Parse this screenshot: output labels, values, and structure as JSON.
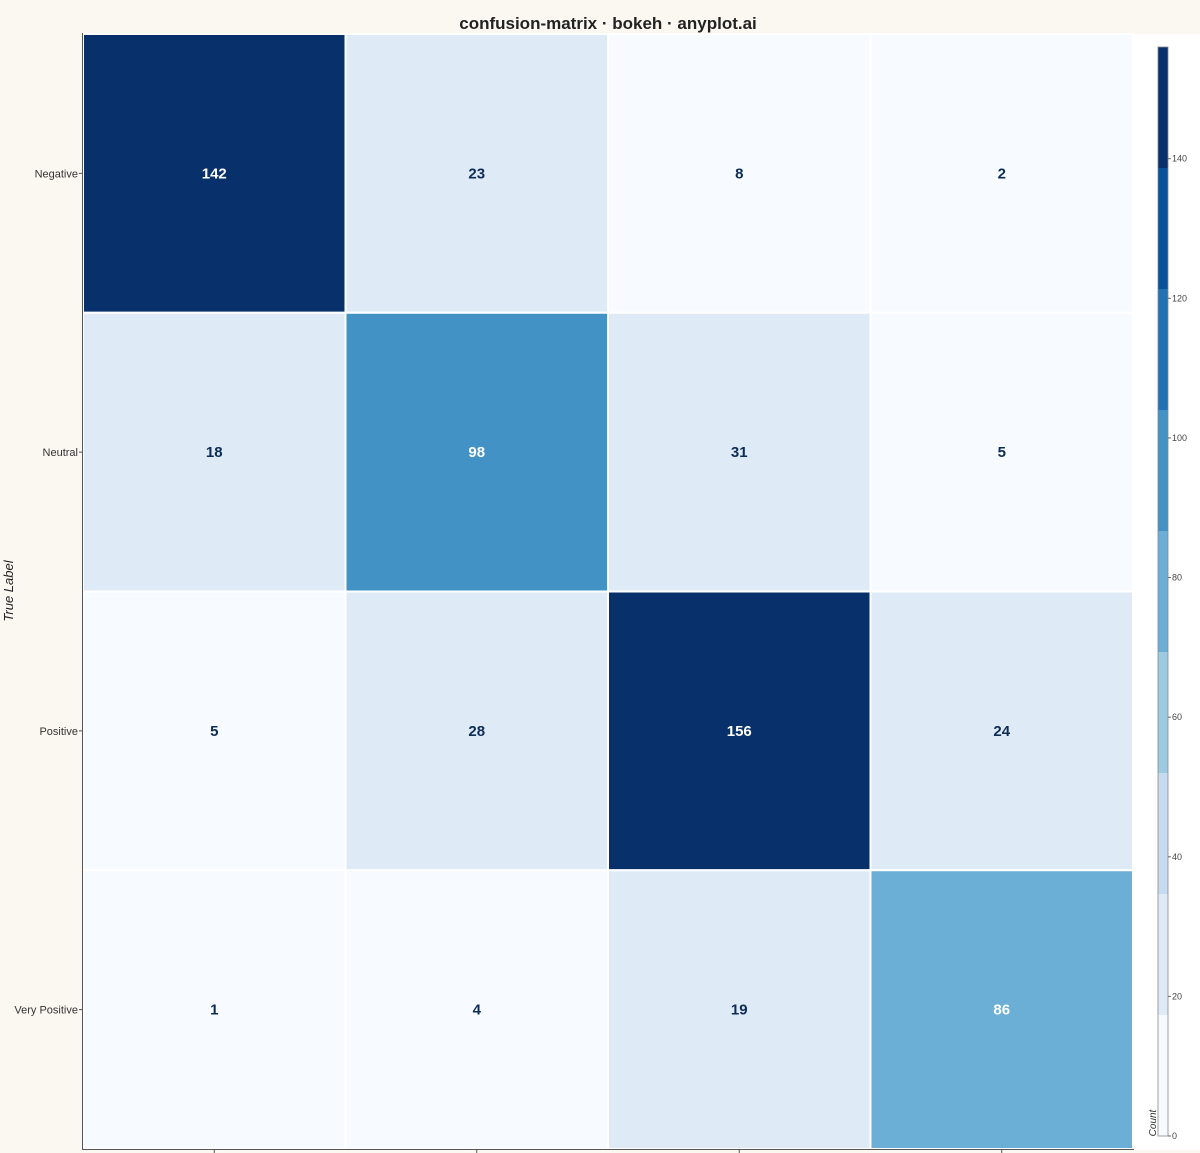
{
  "chart_data": {
    "type": "heatmap",
    "title": "confusion-matrix · bokeh · anyplot.ai",
    "ylabel": "True Label",
    "xlabel": "",
    "row_labels": [
      "Negative",
      "Neutral",
      "Positive",
      "Very Positive"
    ],
    "col_labels": [
      "",
      "",
      "",
      ""
    ],
    "values": [
      [
        142,
        23,
        8,
        2
      ],
      [
        18,
        98,
        31,
        5
      ],
      [
        5,
        28,
        156,
        24
      ],
      [
        1,
        4,
        19,
        86
      ]
    ],
    "colorbar": {
      "title": "Count",
      "range": [
        0,
        156
      ],
      "ticks": [
        0,
        20,
        40,
        60,
        80,
        100,
        120,
        140
      ],
      "palette": [
        "#f7fbff",
        "#deebf7",
        "#c6dbef",
        "#9ecae1",
        "#6baed6",
        "#4292c6",
        "#2171b5",
        "#08519c",
        "#08306b"
      ]
    },
    "text_colors": {
      "dark": "#0d2c54",
      "light": "#ffffff"
    },
    "grid": false
  }
}
